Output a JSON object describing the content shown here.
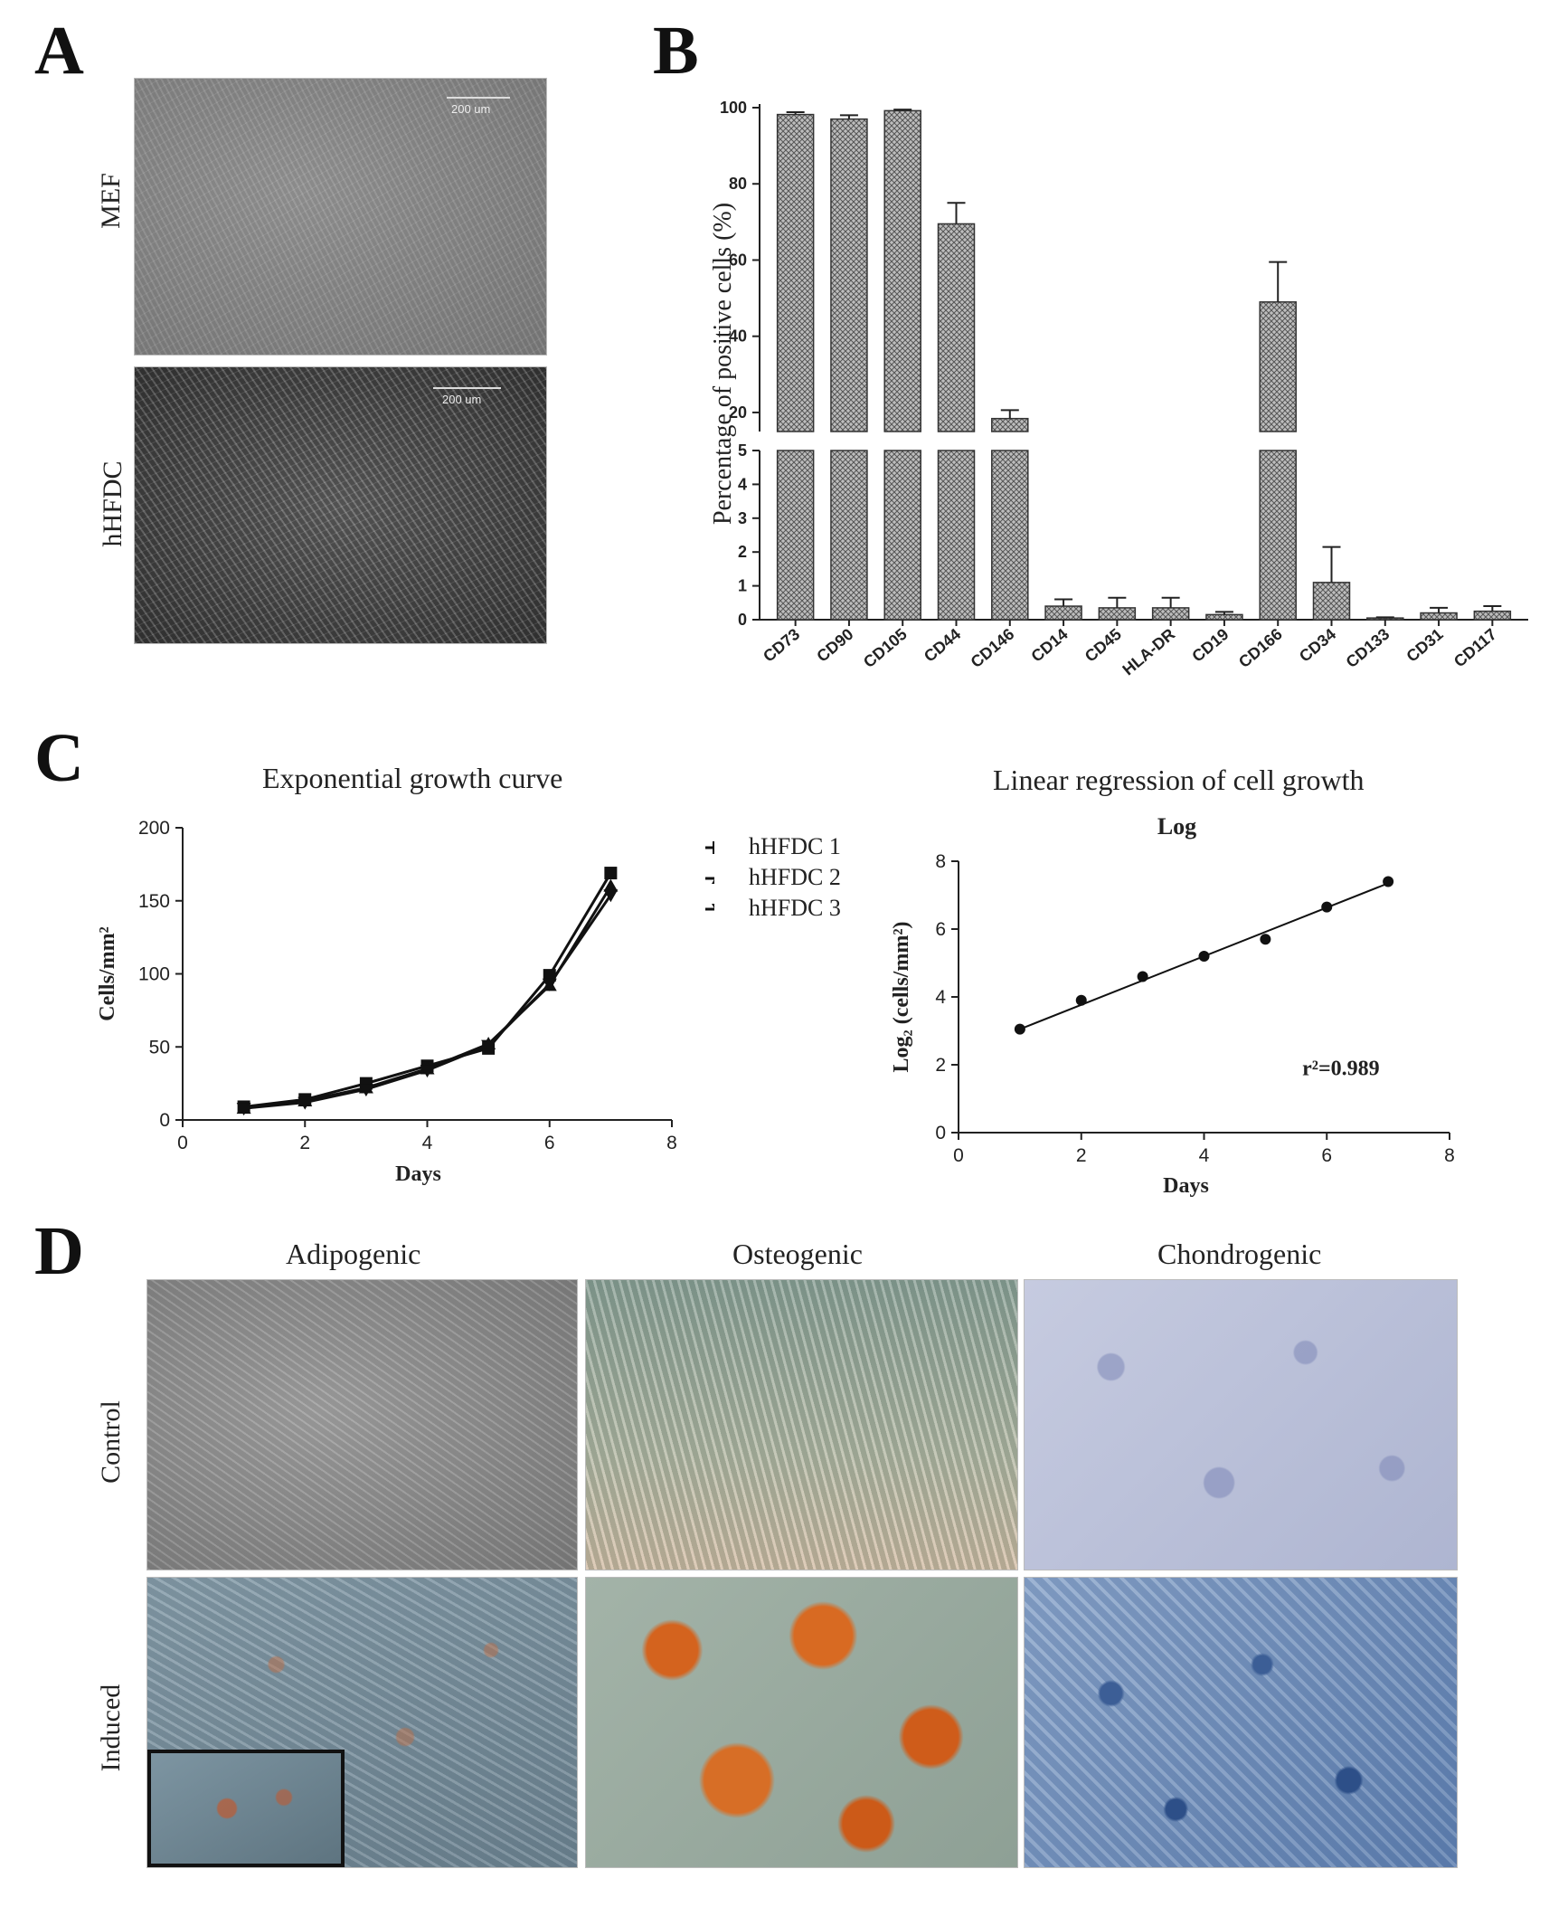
{
  "panels": {
    "a": {
      "letter": "A",
      "rows": [
        "MEF",
        "hHFDC"
      ],
      "scale": [
        "200 um",
        "200 um"
      ]
    },
    "b": {
      "letter": "B"
    },
    "c": {
      "letter": "C",
      "left_title": "Exponential growth curve",
      "right_title": "Linear regression of cell growth"
    },
    "d": {
      "letter": "D",
      "columns": [
        "Adipogenic",
        "Osteogenic",
        "Chondrogenic"
      ],
      "rows": [
        "Control",
        "Induced"
      ]
    }
  },
  "colors": {
    "bar_fill": "#8a8a8a",
    "axis": "#222222",
    "micro_gray": "#8e8e8e",
    "adipo_induced": "#7f97a6",
    "osteo_control": "#9fb0a8",
    "osteo_induced": "#c8762e",
    "chondro_control": "#b9c0d6",
    "chondro_induced": "#6f8fb8"
  },
  "chart_data": [
    {
      "type": "bar",
      "ylabel": "Percentage of positive cells (%)",
      "categories": [
        "CD73",
        "CD90",
        "CD105",
        "CD44",
        "CD146",
        "CD14",
        "CD45",
        "HLA-DR",
        "CD19",
        "CD166",
        "CD34",
        "CD133",
        "CD31",
        "CD117"
      ],
      "values": [
        98.2,
        97.0,
        99.2,
        69.5,
        18.4,
        0.4,
        0.35,
        0.35,
        0.15,
        49.0,
        1.1,
        0.05,
        0.2,
        0.25
      ],
      "errors": [
        0.6,
        1.0,
        0.3,
        5.5,
        2.2,
        0.2,
        0.3,
        0.3,
        0.08,
        10.5,
        1.05,
        0.02,
        0.15,
        0.15
      ],
      "broken_axis": {
        "lower": [
          0,
          5
        ],
        "upper": [
          15,
          100
        ]
      },
      "yticks_lower": [
        0,
        1,
        2,
        3,
        4,
        5
      ],
      "yticks_upper": [
        20,
        40,
        60,
        80,
        100
      ]
    },
    {
      "type": "line",
      "title": "",
      "xlabel": "Days",
      "ylabel": "Cells/mm²",
      "xlim": [
        0,
        8
      ],
      "ylim": [
        0,
        200
      ],
      "xticks": [
        0,
        2,
        4,
        6,
        8
      ],
      "yticks": [
        0,
        50,
        100,
        150,
        200
      ],
      "legend_position": "right",
      "series": [
        {
          "name": "hHFDC 1",
          "marker": "square",
          "x": [
            1,
            2,
            3,
            4,
            5,
            6,
            7
          ],
          "y": [
            9,
            14,
            25,
            37,
            49,
            99,
            169
          ]
        },
        {
          "name": "hHFDC 2",
          "marker": "triangle-up",
          "x": [
            1,
            2,
            3,
            4,
            5,
            6,
            7
          ],
          "y": [
            8,
            13,
            22,
            35,
            52,
            92,
            160
          ]
        },
        {
          "name": "hHFDC 3",
          "marker": "triangle-down",
          "x": [
            1,
            2,
            3,
            4,
            5,
            6,
            7
          ],
          "y": [
            8,
            12,
            21,
            34,
            51,
            93,
            154
          ]
        }
      ]
    },
    {
      "type": "scatter",
      "title": "Log",
      "xlabel": "Days",
      "ylabel": "Log₂ (cells/mm²)",
      "xlim": [
        0,
        8
      ],
      "ylim": [
        0,
        8
      ],
      "xticks": [
        0,
        2,
        4,
        6,
        8
      ],
      "yticks": [
        0,
        2,
        4,
        6,
        8
      ],
      "points": {
        "x": [
          1,
          2,
          3,
          4,
          5,
          6,
          7
        ],
        "y": [
          3.05,
          3.9,
          4.6,
          5.2,
          5.7,
          6.65,
          7.4
        ]
      },
      "fit_line": {
        "x": [
          1,
          7
        ],
        "y": [
          3.05,
          7.35
        ]
      },
      "annotation": "r²=0.989"
    }
  ]
}
